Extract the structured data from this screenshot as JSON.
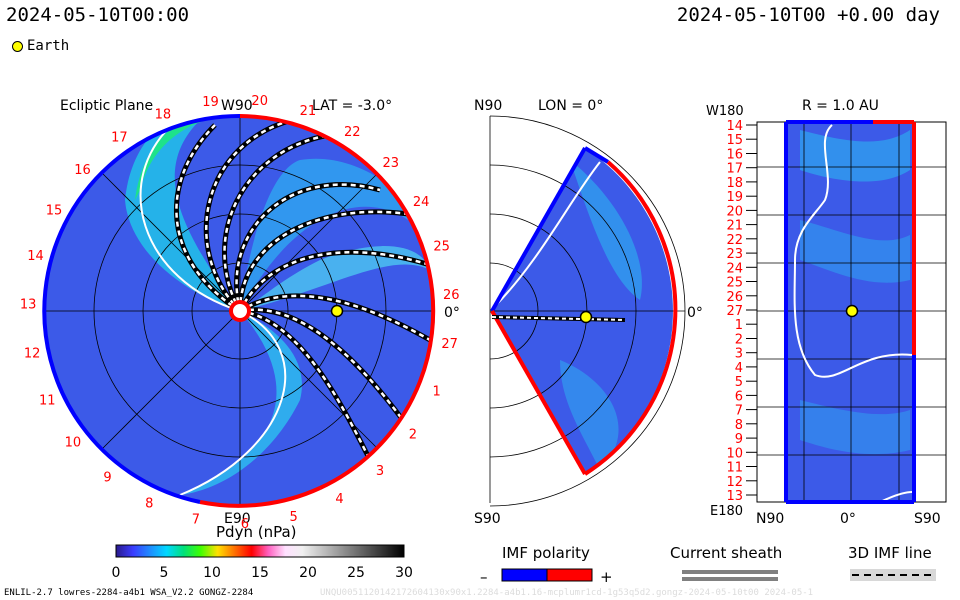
{
  "header": {
    "left": "2024-05-10T00:00",
    "right": "2024-05-10T00 +0.00 day"
  },
  "legend": {
    "earth_label": "Earth"
  },
  "panels": {
    "ecliptic": {
      "title": "Ecliptic Plane",
      "lat_label": "LAT = -3.0°",
      "top_label": "W90",
      "bottom_label": "E90",
      "right_label": "0°",
      "sector_numbers": [
        "19",
        "20",
        "21",
        "22",
        "23",
        "24",
        "25",
        "26",
        "27",
        "1",
        "2",
        "3",
        "4",
        "5",
        "6",
        "7",
        "8",
        "9",
        "10",
        "11",
        "12",
        "13",
        "14",
        "15",
        "16",
        "17",
        "18"
      ]
    },
    "meridional": {
      "top_label": "N90",
      "lon_label": "LON = 0°",
      "bottom_label": "S90",
      "right_label": "0°"
    },
    "radial": {
      "title": "R = 1.0 AU",
      "top_left_label": "W180",
      "bottom_left_label": "E180",
      "bottom_labels": [
        "N90",
        "0°",
        "S90"
      ],
      "row_labels": [
        "14",
        "15",
        "16",
        "17",
        "18",
        "19",
        "20",
        "21",
        "22",
        "23",
        "24",
        "25",
        "26",
        "27",
        "1",
        "2",
        "3",
        "4",
        "5",
        "6",
        "7",
        "8",
        "9",
        "10",
        "11",
        "12",
        "13"
      ]
    }
  },
  "colorbar": {
    "title": "Pdyn (nPa)",
    "ticks": [
      "0",
      "5",
      "10",
      "15",
      "20",
      "25",
      "30"
    ],
    "range": [
      0,
      30
    ],
    "stops": [
      "#2a1a8c",
      "#3a3cff",
      "#1f8cff",
      "#00d8ff",
      "#00e07a",
      "#40ff00",
      "#ffe000",
      "#ff7000",
      "#ff0000",
      "#ff60c0",
      "#ffe0ff",
      "#f0f0f0",
      "#c8c8c8",
      "#a0a0a0",
      "#787878",
      "#505050",
      "#282828",
      "#000000"
    ]
  },
  "imf_polarity": {
    "title": "IMF polarity",
    "minus": "–",
    "plus": "+",
    "neg_color": "#0000ff",
    "pos_color": "#ff0000"
  },
  "current_sheath": {
    "title": "Current sheath"
  },
  "imf_line": {
    "title": "3D IMF line"
  },
  "footer": {
    "left": "ENLIL-2.7 lowres-2284-a4b1 WSA_V2.2 GONGZ-2284",
    "right": "UNQU0051120142172604130x90x1.2284-a4b1.16-mcplumr1cd-1g53q5d2.gongz-2024-05-10t00 2024-05-1"
  }
}
